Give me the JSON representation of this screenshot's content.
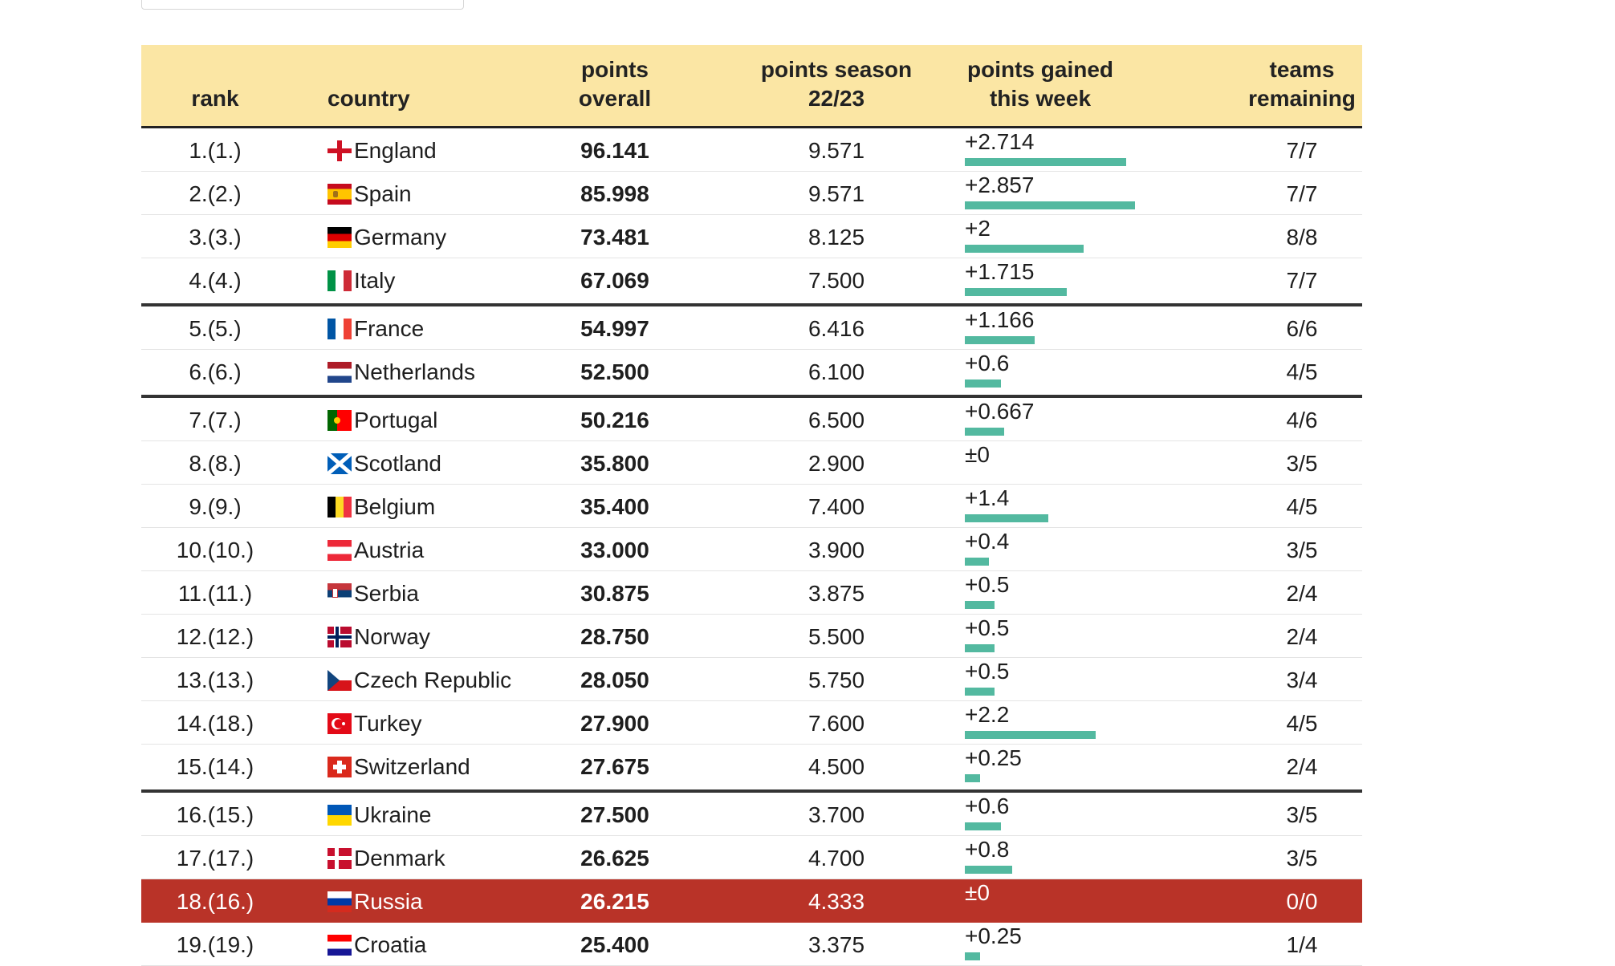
{
  "header": {
    "rank": "rank",
    "country": "country",
    "overall_1": "points",
    "overall_2": "overall",
    "season_1": "points season",
    "season_2": "22/23",
    "gained_1": "points gained",
    "gained_2": "this week",
    "teams_1": "teams",
    "teams_2": "remaining"
  },
  "rows": [
    {
      "rank": "1.(1.)",
      "country": "England",
      "flag": "england-flag-icon",
      "overall": "96.141",
      "season": "9.571",
      "gained": "+2.714",
      "gained_value": 2.714,
      "teams": "7/7"
    },
    {
      "rank": "2.(2.)",
      "country": "Spain",
      "flag": "spain-flag-icon",
      "overall": "85.998",
      "season": "9.571",
      "gained": "+2.857",
      "gained_value": 2.857,
      "teams": "7/7"
    },
    {
      "rank": "3.(3.)",
      "country": "Germany",
      "flag": "germany-flag-icon",
      "overall": "73.481",
      "season": "8.125",
      "gained": "+2",
      "gained_value": 2,
      "teams": "8/8"
    },
    {
      "rank": "4.(4.)",
      "country": "Italy",
      "flag": "italy-flag-icon",
      "overall": "67.069",
      "season": "7.500",
      "gained": "+1.715",
      "gained_value": 1.715,
      "teams": "7/7"
    },
    {
      "rank": "5.(5.)",
      "country": "France",
      "flag": "france-flag-icon",
      "overall": "54.997",
      "season": "6.416",
      "gained": "+1.166",
      "gained_value": 1.166,
      "teams": "6/6"
    },
    {
      "rank": "6.(6.)",
      "country": "Netherlands",
      "flag": "netherlands-flag-icon",
      "overall": "52.500",
      "season": "6.100",
      "gained": "+0.6",
      "gained_value": 0.6,
      "teams": "4/5"
    },
    {
      "rank": "7.(7.)",
      "country": "Portugal",
      "flag": "portugal-flag-icon",
      "overall": "50.216",
      "season": "6.500",
      "gained": "+0.667",
      "gained_value": 0.667,
      "teams": "4/6"
    },
    {
      "rank": "8.(8.)",
      "country": "Scotland",
      "flag": "scotland-flag-icon",
      "overall": "35.800",
      "season": "2.900",
      "gained": "±0",
      "gained_value": 0,
      "teams": "3/5"
    },
    {
      "rank": "9.(9.)",
      "country": "Belgium",
      "flag": "belgium-flag-icon",
      "overall": "35.400",
      "season": "7.400",
      "gained": "+1.4",
      "gained_value": 1.4,
      "teams": "4/5"
    },
    {
      "rank": "10.(10.)",
      "country": "Austria",
      "flag": "austria-flag-icon",
      "overall": "33.000",
      "season": "3.900",
      "gained": "+0.4",
      "gained_value": 0.4,
      "teams": "3/5"
    },
    {
      "rank": "11.(11.)",
      "country": "Serbia",
      "flag": "serbia-flag-icon",
      "overall": "30.875",
      "season": "3.875",
      "gained": "+0.5",
      "gained_value": 0.5,
      "teams": "2/4"
    },
    {
      "rank": "12.(12.)",
      "country": "Norway",
      "flag": "norway-flag-icon",
      "overall": "28.750",
      "season": "5.500",
      "gained": "+0.5",
      "gained_value": 0.5,
      "teams": "2/4"
    },
    {
      "rank": "13.(13.)",
      "country": "Czech Republic",
      "flag": "czech-flag-icon",
      "overall": "28.050",
      "season": "5.750",
      "gained": "+0.5",
      "gained_value": 0.5,
      "teams": "3/4"
    },
    {
      "rank": "14.(18.)",
      "country": "Turkey",
      "flag": "turkey-flag-icon",
      "overall": "27.900",
      "season": "7.600",
      "gained": "+2.2",
      "gained_value": 2.2,
      "teams": "4/5"
    },
    {
      "rank": "15.(14.)",
      "country": "Switzerland",
      "flag": "switzerland-flag-icon",
      "overall": "27.675",
      "season": "4.500",
      "gained": "+0.25",
      "gained_value": 0.25,
      "teams": "2/4"
    },
    {
      "rank": "16.(15.)",
      "country": "Ukraine",
      "flag": "ukraine-flag-icon",
      "overall": "27.500",
      "season": "3.700",
      "gained": "+0.6",
      "gained_value": 0.6,
      "teams": "3/5"
    },
    {
      "rank": "17.(17.)",
      "country": "Denmark",
      "flag": "denmark-flag-icon",
      "overall": "26.625",
      "season": "4.700",
      "gained": "+0.8",
      "gained_value": 0.8,
      "teams": "3/5"
    },
    {
      "rank": "18.(16.)",
      "country": "Russia",
      "flag": "russia-flag-icon",
      "overall": "26.215",
      "season": "4.333",
      "gained": "±0",
      "gained_value": 0,
      "teams": "0/0"
    },
    {
      "rank": "19.(19.)",
      "country": "Croatia",
      "flag": "croatia-flag-icon",
      "overall": "25.400",
      "season": "3.375",
      "gained": "+0.25",
      "gained_value": 0.25,
      "teams": "1/4"
    }
  ],
  "colors": {
    "header_bg": "#fbe6a4",
    "bar": "#53b9a0",
    "highlight": "#b93328"
  }
}
